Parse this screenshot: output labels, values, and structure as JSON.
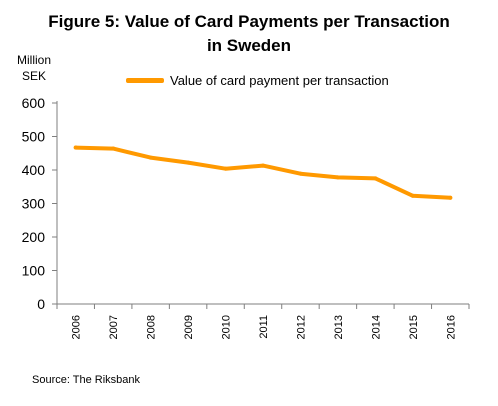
{
  "title_lines": [
    "Figure 5: Value of Card Payments per Transaction",
    "in Sweden"
  ],
  "y_unit_lines": [
    "Million",
    "SEK"
  ],
  "source": "Source: The Riksbank",
  "colors": {
    "series": "#FF9900",
    "axis": "#7f7f7f",
    "text": "#000000"
  },
  "chart_data": {
    "type": "line",
    "title": "Figure 5: Value of Card Payments per Transaction in Sweden",
    "ylabel": "Million SEK",
    "xlabel": "",
    "categories": [
      "2006",
      "2007",
      "2008",
      "2009",
      "2010",
      "2011",
      "2012",
      "2013",
      "2014",
      "2015",
      "2016"
    ],
    "yticks": [
      "0",
      "100",
      "200",
      "300",
      "400",
      "500",
      "600"
    ],
    "ylim": [
      0,
      600
    ],
    "grid": false,
    "legend_position": "top",
    "series": [
      {
        "name": "Value of card payment per transaction",
        "values": [
          467,
          464,
          437,
          422,
          404,
          413,
          389,
          378,
          375,
          323,
          317
        ]
      }
    ]
  }
}
